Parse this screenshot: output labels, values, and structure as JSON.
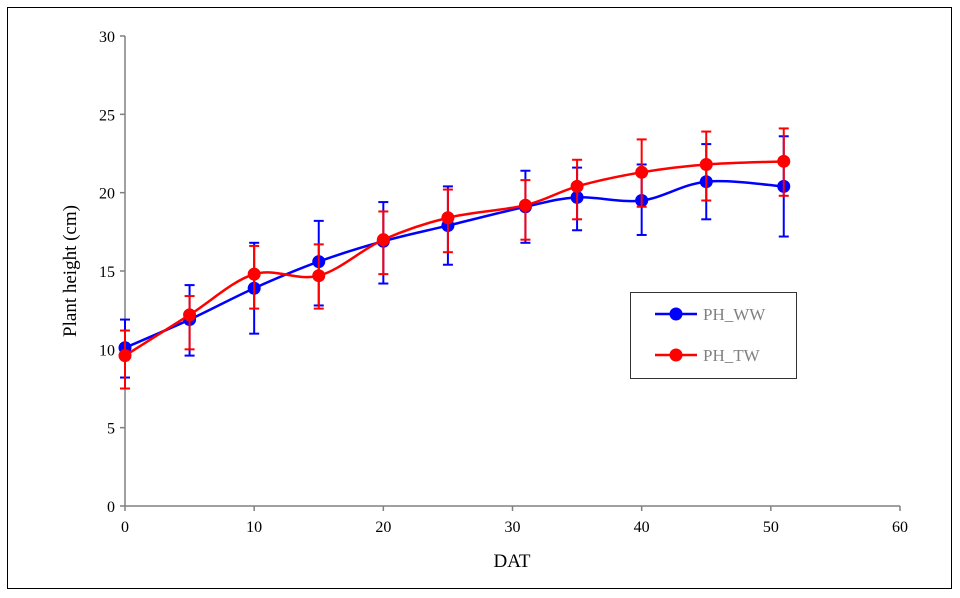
{
  "chart_data": {
    "type": "line",
    "title": "",
    "xlabel": "DAT",
    "ylabel": "Plant height (cm)",
    "xlim": [
      0,
      60
    ],
    "ylim": [
      0,
      30
    ],
    "xticks": [
      0,
      10,
      20,
      30,
      40,
      50,
      60
    ],
    "yticks": [
      0,
      5,
      10,
      15,
      20,
      25,
      30
    ],
    "grid": false,
    "legend_position": "right",
    "smoothed": true,
    "series": [
      {
        "name": "PH_WW",
        "color": "#0000ff",
        "x": [
          0,
          5,
          10,
          15,
          20,
          25,
          31,
          35,
          40,
          45,
          51
        ],
        "y": [
          10.1,
          11.9,
          13.9,
          15.6,
          16.9,
          17.9,
          19.1,
          19.7,
          19.5,
          20.7,
          20.4
        ],
        "y_upper": [
          11.9,
          14.1,
          16.8,
          18.2,
          19.4,
          20.4,
          21.4,
          21.6,
          21.8,
          23.1,
          23.6
        ],
        "y_lower": [
          8.2,
          9.6,
          11.0,
          12.8,
          14.2,
          15.4,
          16.8,
          17.6,
          17.3,
          18.3,
          17.2
        ]
      },
      {
        "name": "PH_TW",
        "color": "#ff0000",
        "x": [
          0,
          5,
          10,
          15,
          20,
          25,
          31,
          35,
          40,
          45,
          51
        ],
        "y": [
          9.6,
          12.2,
          14.8,
          14.7,
          17.0,
          18.4,
          19.2,
          20.4,
          21.3,
          21.8,
          22.0
        ],
        "y_upper": [
          11.2,
          13.4,
          16.6,
          16.7,
          18.8,
          20.2,
          20.8,
          22.1,
          23.4,
          23.9,
          24.1
        ],
        "y_lower": [
          7.5,
          10.0,
          12.6,
          12.6,
          14.8,
          16.2,
          17.0,
          18.3,
          19.1,
          19.5,
          19.8
        ]
      }
    ]
  }
}
